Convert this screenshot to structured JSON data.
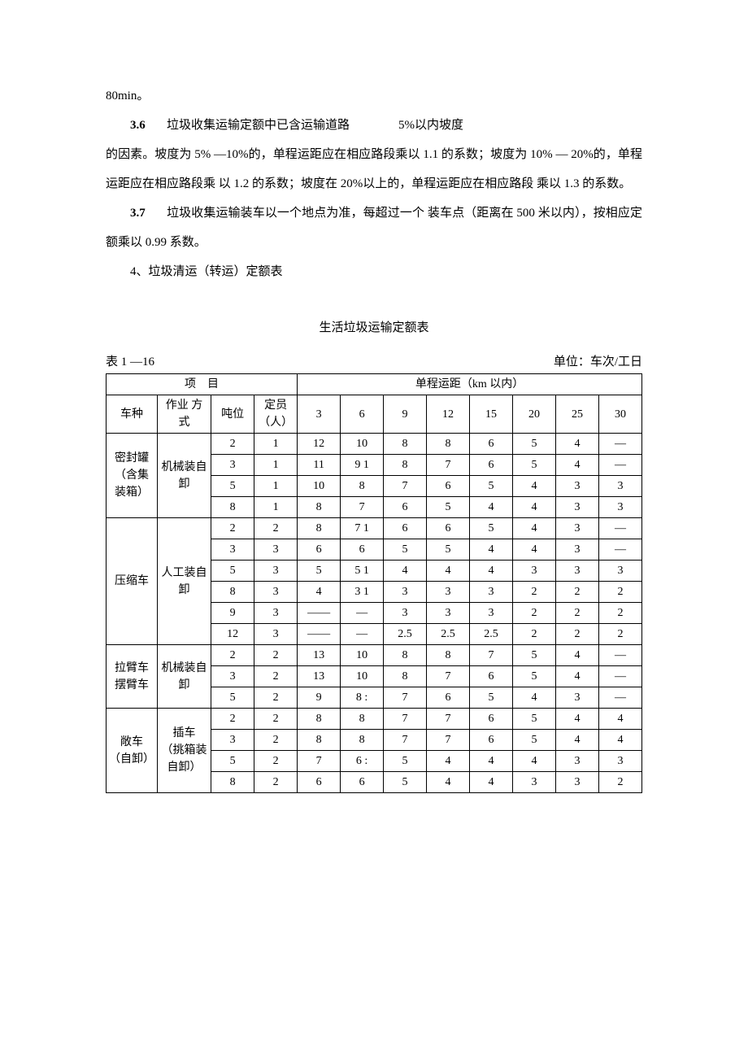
{
  "paragraphs": {
    "p0": "80min。",
    "p1_num": "3.6",
    "p1_a": "垃圾收集运输定额中已含运输道路",
    "p1_b": "5%以内坡度",
    "p1_cont": "的因素。坡度为 5% —10%的，单程运距应在相应路段乘以 1.1 的系数；坡度为 10% — 20%的，单程运距应在相应路段乘 以 1.2 的系数；坡度在 20%以上的，单程运距应在相应路段 乘以 1.3 的系数。",
    "p2_num": "3.7",
    "p2_body": "垃圾收集运输装车以一个地点为准，每超过一个 装车点（距离在 500 米以内），按相应定额乘以 0.99 系数。",
    "p3": "4、垃圾清运（转运）定额表"
  },
  "table": {
    "title": "生活垃圾运输定额表",
    "label": "表 1 —16",
    "unit": "单位：车次/工日",
    "header": {
      "project": "项　目",
      "distance": "单程运距（km 以内）",
      "vehicle": "车种",
      "method": "作业 方式",
      "tonnage": "吨位",
      "crew": "定员（人）",
      "dists": [
        "3",
        "6",
        "9",
        "12",
        "15",
        "20",
        "25",
        "30"
      ]
    },
    "groups": [
      {
        "vehicle": "密封罐（含集装箱）",
        "method": "机械装自卸",
        "rows": [
          {
            "t": "2",
            "p": "1",
            "v": [
              "12",
              "10",
              "8",
              "8",
              "6",
              "5",
              "4",
              "—"
            ]
          },
          {
            "t": "3",
            "p": "1",
            "v": [
              "11",
              "9 1",
              "8",
              "7",
              "6",
              "5",
              "4",
              "—"
            ]
          },
          {
            "t": "5",
            "p": "1",
            "v": [
              "10",
              "8",
              "7",
              "6",
              "5",
              "4",
              "3",
              "3"
            ]
          },
          {
            "t": "8",
            "p": "1",
            "v": [
              "8",
              "7",
              "6",
              "5",
              "4",
              "4",
              "3",
              "3"
            ]
          }
        ]
      },
      {
        "vehicle": "压缩车",
        "method": "人工装自卸",
        "rows": [
          {
            "t": "2",
            "p": "2",
            "v": [
              "8",
              "7 1",
              "6",
              "6",
              "5",
              "4",
              "3",
              "—"
            ]
          },
          {
            "t": "3",
            "p": "3",
            "v": [
              "6",
              "6",
              "5",
              "5",
              "4",
              "4",
              "3",
              "—"
            ]
          },
          {
            "t": "5",
            "p": "3",
            "v": [
              "5",
              "5 1",
              "4",
              "4",
              "4",
              "3",
              "3",
              "3"
            ]
          },
          {
            "t": "8",
            "p": "3",
            "v": [
              "4",
              "3 1",
              "3",
              "3",
              "3",
              "2",
              "2",
              "2"
            ]
          },
          {
            "t": "9",
            "p": "3",
            "v": [
              "——",
              "—",
              "3",
              "3",
              "3",
              "2",
              "2",
              "2"
            ]
          },
          {
            "t": "12",
            "p": "3",
            "v": [
              "——",
              "—",
              "2.5",
              "2.5",
              "2.5",
              "2",
              "2",
              "2"
            ]
          }
        ]
      },
      {
        "vehicle": "拉臂车摆臂车",
        "method": "机械装自卸",
        "rows": [
          {
            "t": "2",
            "p": "2",
            "v": [
              "13",
              "10",
              "8",
              "8",
              "7",
              "5",
              "4",
              "—"
            ]
          },
          {
            "t": "3",
            "p": "2",
            "v": [
              "13",
              "10",
              "8",
              "7",
              "6",
              "5",
              "4",
              "—"
            ]
          },
          {
            "t": "5",
            "p": "2",
            "v": [
              "9",
              "8 :",
              "7",
              "6",
              "5",
              "4",
              "3",
              "—"
            ]
          }
        ]
      },
      {
        "vehicle": "敞车（自卸）",
        "method": "插车 （挑箱装自卸）",
        "rows": [
          {
            "t": "2",
            "p": "2",
            "v": [
              "8",
              "8",
              "7",
              "7",
              "6",
              "5",
              "4",
              "4"
            ]
          },
          {
            "t": "3",
            "p": "2",
            "v": [
              "8",
              "8",
              "7",
              "7",
              "6",
              "5",
              "4",
              "4"
            ]
          },
          {
            "t": "5",
            "p": "2",
            "v": [
              "7",
              "6 :",
              "5",
              "4",
              "4",
              "4",
              "3",
              "3"
            ]
          },
          {
            "t": "8",
            "p": "2",
            "v": [
              "6",
              "6",
              "5",
              "4",
              "4",
              "3",
              "3",
              "2"
            ]
          }
        ]
      }
    ]
  }
}
